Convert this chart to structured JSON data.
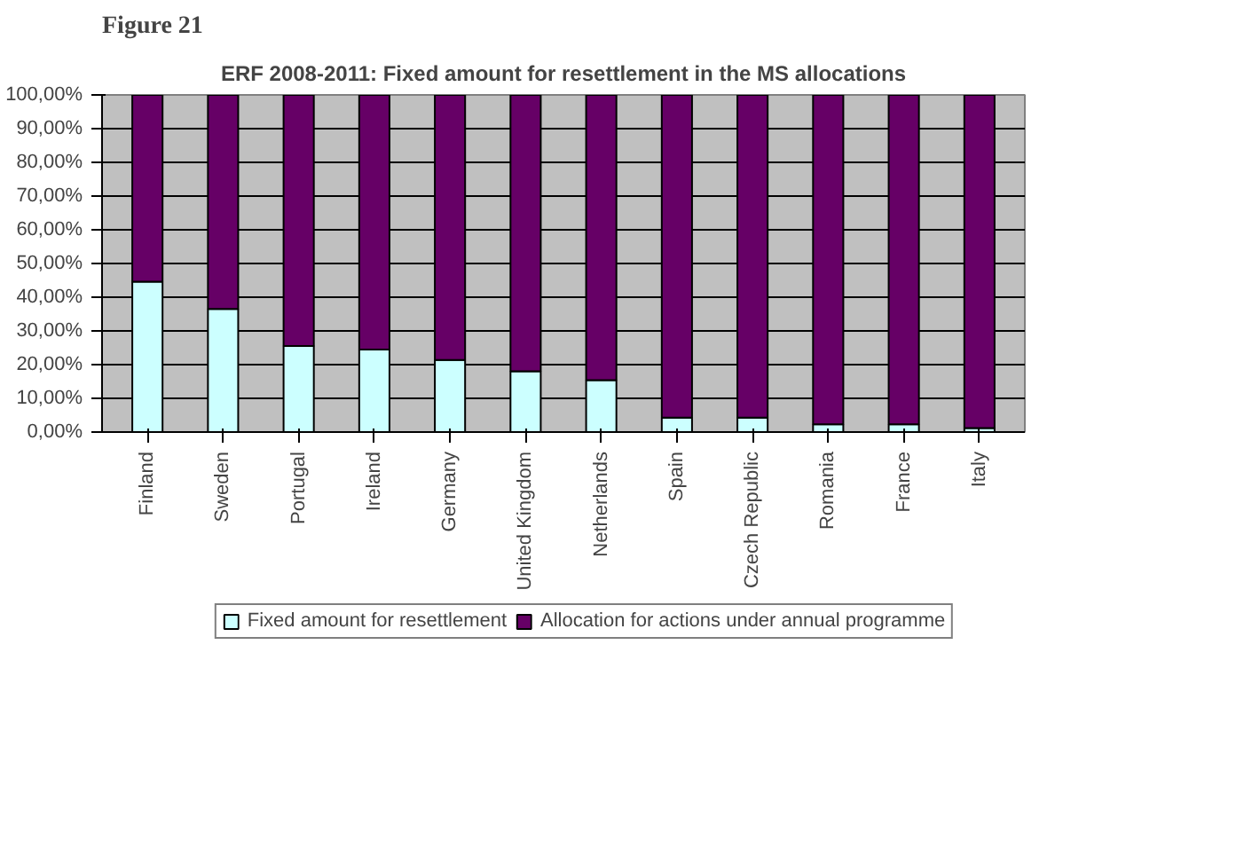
{
  "chart_data": {
    "type": "bar",
    "stacked": true,
    "title": "ERF 2008-2011: Fixed amount for resettlement in the MS allocations",
    "annotations": [
      "Figure 21"
    ],
    "categories": [
      "Finland",
      "Sweden",
      "Portugal",
      "Ireland",
      "Germany",
      "United Kingdom",
      "Netherlands",
      "Spain",
      "Czech Republic",
      "Romania",
      "France",
      "Italy"
    ],
    "series": [
      {
        "name": "Fixed amount for resettlement",
        "color": "#ccffff",
        "values": [
          44.6,
          36.5,
          25.5,
          24.5,
          21.4,
          18.0,
          15.4,
          4.3,
          4.3,
          2.3,
          2.3,
          1.2
        ]
      },
      {
        "name": "Allocation for actions under annual programme",
        "color": "#660066",
        "values": [
          55.4,
          63.5,
          74.5,
          75.5,
          78.6,
          82.0,
          84.6,
          95.7,
          95.7,
          97.7,
          97.7,
          98.8
        ]
      }
    ],
    "ylim": [
      0,
      100
    ],
    "yticks": [
      {
        "value": 0,
        "label": "0,00%"
      },
      {
        "value": 10,
        "label": "10,00%"
      },
      {
        "value": 20,
        "label": "20,00%"
      },
      {
        "value": 30,
        "label": "30,00%"
      },
      {
        "value": 40,
        "label": "40,00%"
      },
      {
        "value": 50,
        "label": "50,00%"
      },
      {
        "value": 60,
        "label": "60,00%"
      },
      {
        "value": 70,
        "label": "70,00%"
      },
      {
        "value": 80,
        "label": "80,00%"
      },
      {
        "value": 90,
        "label": "90,00%"
      },
      {
        "value": 100,
        "label": "100,00%"
      }
    ],
    "grid": "y",
    "legend": "bottom"
  }
}
